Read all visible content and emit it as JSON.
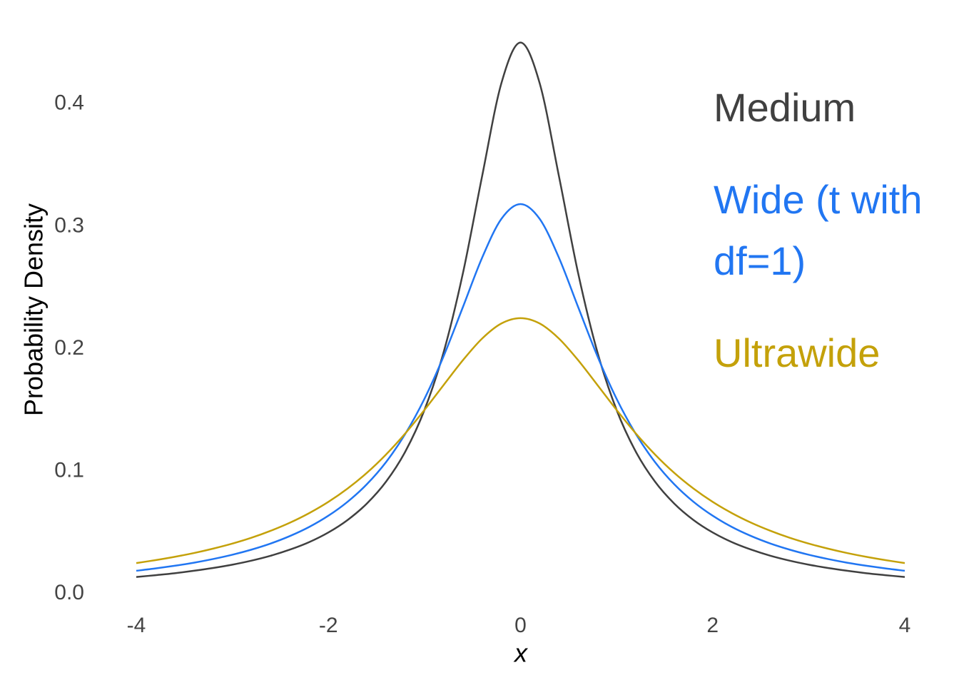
{
  "chart_data": {
    "type": "line",
    "x_label": "x",
    "y_label": "Probability Density",
    "x": [
      -4,
      -3.8,
      -3.6,
      -3.4,
      -3.2,
      -3,
      -2.8,
      -2.6,
      -2.4,
      -2.2,
      -2,
      -1.8,
      -1.6,
      -1.4,
      -1.2,
      -1,
      -0.8,
      -0.6,
      -0.4,
      -0.2,
      0,
      0.2,
      0.4,
      0.6,
      0.8,
      1,
      1.2,
      1.4,
      1.6,
      1.8,
      2,
      2.2,
      2.4,
      2.6,
      2.8,
      3,
      3.2,
      3.4,
      3.6,
      3.8,
      4
    ],
    "series": [
      {
        "name": "Medium",
        "color": "#404040",
        "values": [
          0.0136,
          0.0151,
          0.0167,
          0.0187,
          0.021,
          0.0237,
          0.027,
          0.031,
          0.036,
          0.0421,
          0.05,
          0.0602,
          0.0736,
          0.0915,
          0.116,
          0.1501,
          0.1974,
          0.2617,
          0.341,
          0.4168,
          0.4502,
          0.4168,
          0.341,
          0.2617,
          0.1974,
          0.1501,
          0.116,
          0.0915,
          0.0736,
          0.0602,
          0.05,
          0.0421,
          0.036,
          0.031,
          0.027,
          0.0237,
          0.021,
          0.0187,
          0.0167,
          0.0151,
          0.0136
        ]
      },
      {
        "name": "Wide (t with df=1)",
        "color": "#2176f2",
        "values": [
          0.0187,
          0.0206,
          0.0228,
          0.0253,
          0.0283,
          0.0318,
          0.036,
          0.041,
          0.0471,
          0.0545,
          0.0637,
          0.0751,
          0.0894,
          0.1075,
          0.1305,
          0.1592,
          0.1941,
          0.2341,
          0.2744,
          0.3061,
          0.3183,
          0.3061,
          0.2744,
          0.2341,
          0.1941,
          0.1592,
          0.1305,
          0.1075,
          0.0894,
          0.0751,
          0.0637,
          0.0545,
          0.0471,
          0.041,
          0.036,
          0.0318,
          0.0283,
          0.0253,
          0.0228,
          0.0206,
          0.0187
        ]
      },
      {
        "name": "Ultrawide",
        "color": "#c4a10a",
        "values": [
          0.025,
          0.0274,
          0.0301,
          0.0332,
          0.0368,
          0.0409,
          0.0457,
          0.0514,
          0.058,
          0.0658,
          0.075,
          0.0859,
          0.0987,
          0.1137,
          0.1309,
          0.1501,
          0.1705,
          0.1907,
          0.2084,
          0.2207,
          0.2251,
          0.2207,
          0.2084,
          0.1907,
          0.1705,
          0.1501,
          0.1309,
          0.1137,
          0.0987,
          0.0859,
          0.075,
          0.0658,
          0.058,
          0.0514,
          0.0457,
          0.0409,
          0.0368,
          0.0332,
          0.0301,
          0.0274,
          0.025
        ]
      }
    ],
    "xlim": [
      -4,
      4
    ],
    "xticks": [
      -4,
      -2,
      0,
      2,
      4
    ],
    "ylim": [
      0,
      0.45
    ],
    "yticks": [
      {
        "value": 0,
        "label": "0.0"
      },
      0.1,
      0.2,
      0.3,
      0.4
    ],
    "grid": false,
    "legend": "right"
  }
}
